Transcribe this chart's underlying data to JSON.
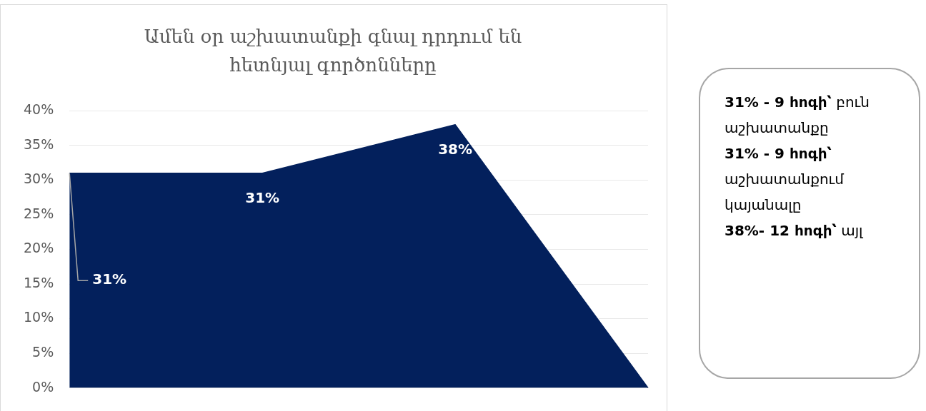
{
  "chart_data": [
    {
      "type": "area",
      "title": "Ամեն օր աշխատանքի գնալ դրդում են հետնյալ գործոնները",
      "categories": [
        null,
        null,
        null,
        null
      ],
      "values": [
        31,
        31,
        38,
        0
      ],
      "color": "#03205c",
      "value_labels": [
        "31%",
        "31%",
        "38%",
        null
      ],
      "ylim": [
        0,
        40
      ],
      "yticks": [
        {
          "value": 0,
          "label": "0%"
        },
        {
          "value": 5,
          "label": "5%"
        },
        {
          "value": 10,
          "label": "10%"
        },
        {
          "value": 15,
          "label": "15%"
        },
        {
          "value": 20,
          "label": "20%"
        },
        {
          "value": 25,
          "label": "25%"
        },
        {
          "value": 30,
          "label": "30%"
        },
        {
          "value": 35,
          "label": "35%"
        },
        {
          "value": 40,
          "label": "40%"
        }
      ],
      "grid": "y",
      "marker": "none",
      "legend": false
    },
    {
      "type": "other",
      "annotations": [
        "31% - 9 հոգի՝ բուն աշխատանքը",
        "31% - 9 հոգի՝ աշխատանքում կայանալը",
        "38%- 12 հոգի՝ այլ"
      ]
    }
  ]
}
